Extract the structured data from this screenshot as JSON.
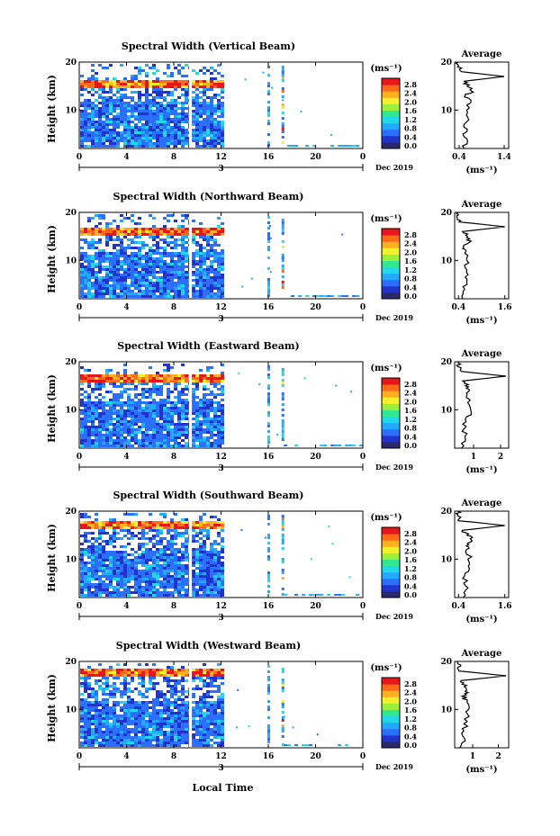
{
  "x_label": "Local Time",
  "day_label": "3",
  "date_label": "Dec 2019",
  "avg_title": "Average",
  "unit_label": "(ms⁻¹)",
  "y_label": "Height (km)",
  "colorbar_ticks": [
    "0.0",
    "0.4",
    "0.8",
    "1.2",
    "1.6",
    "2.0",
    "2.4",
    "2.8"
  ],
  "colorbar_colors": [
    "#2a2a6a",
    "#2233cc",
    "#2b6fff",
    "#22aaff",
    "#20d8e8",
    "#30e890",
    "#9cf03a",
    "#f2f02a",
    "#ffb020",
    "#ff6a1a",
    "#e8161a"
  ],
  "chart_data": [
    {
      "type": "heatmap",
      "title": "Spectral Width (Vertical Beam)",
      "xlabel": "Local Time",
      "ylabel": "Height (km)",
      "colorbar_label": "(ms⁻¹)",
      "x_ticks": [
        "0",
        "4",
        "8",
        "12",
        "16",
        "20",
        "0"
      ],
      "xlim": [
        0,
        24
      ],
      "y_ticks": [
        "20",
        "10"
      ],
      "ylim": [
        2,
        20
      ],
      "color_ticks": [
        "0.0",
        "0.4",
        "0.8",
        "1.2",
        "1.6",
        "2.0",
        "2.4",
        "2.8"
      ],
      "clim": [
        0,
        3.0
      ],
      "average_profile": {
        "xlabel": "(ms⁻¹)",
        "x_ticks": [
          "0.4",
          "1.4"
        ],
        "xlim": [
          0.3,
          1.5
        ],
        "height_km": [
          2,
          4,
          6,
          8,
          10,
          12,
          13,
          14,
          15,
          16,
          17,
          18,
          19,
          20
        ],
        "values": [
          0.5,
          0.55,
          0.52,
          0.6,
          0.58,
          0.62,
          0.55,
          0.7,
          0.6,
          0.5,
          1.4,
          0.45,
          0.4,
          0.38
        ]
      }
    },
    {
      "type": "heatmap",
      "title": "Spectral Width (Northward Beam)",
      "xlabel": "Local Time",
      "ylabel": "Height (km)",
      "colorbar_label": "(ms⁻¹)",
      "x_ticks": [
        "0",
        "4",
        "8",
        "12",
        "16",
        "20",
        "0"
      ],
      "xlim": [
        0,
        24
      ],
      "y_ticks": [
        "20",
        "10"
      ],
      "ylim": [
        2,
        20
      ],
      "color_ticks": [
        "0.0",
        "0.4",
        "0.8",
        "1.2",
        "1.6",
        "2.0",
        "2.4",
        "2.8"
      ],
      "clim": [
        0,
        3.0
      ],
      "average_profile": {
        "xlabel": "(ms⁻¹)",
        "x_ticks": [
          "0.4",
          "1.6"
        ],
        "xlim": [
          0.3,
          1.7
        ],
        "height_km": [
          2,
          4,
          6,
          8,
          10,
          12,
          13,
          14,
          15,
          16,
          17,
          18,
          19,
          20
        ],
        "values": [
          0.5,
          0.55,
          0.6,
          0.58,
          0.62,
          0.6,
          0.55,
          0.7,
          0.65,
          0.5,
          1.6,
          0.45,
          0.42,
          0.4
        ]
      }
    },
    {
      "type": "heatmap",
      "title": "Spectral Width (Eastward Beam)",
      "xlabel": "Local Time",
      "ylabel": "Height (km)",
      "colorbar_label": "(ms⁻¹)",
      "x_ticks": [
        "0",
        "4",
        "8",
        "12",
        "16",
        "20",
        "0"
      ],
      "xlim": [
        0,
        24
      ],
      "y_ticks": [
        "20",
        "10"
      ],
      "ylim": [
        2,
        20
      ],
      "color_ticks": [
        "0.0",
        "0.4",
        "0.8",
        "1.2",
        "1.6",
        "2.0",
        "2.4",
        "2.8"
      ],
      "clim": [
        0,
        3.0
      ],
      "average_profile": {
        "xlabel": "(ms⁻¹)",
        "x_ticks": [
          "1",
          "2"
        ],
        "xlim": [
          0.3,
          2.3
        ],
        "height_km": [
          2,
          4,
          6,
          8,
          10,
          12,
          13,
          14,
          15,
          16,
          17,
          18,
          19,
          20
        ],
        "values": [
          0.6,
          0.7,
          0.65,
          0.75,
          0.9,
          0.8,
          0.7,
          0.85,
          0.75,
          0.6,
          2.2,
          0.5,
          0.45,
          0.45
        ]
      }
    },
    {
      "type": "heatmap",
      "title": "Spectral Width (Southward Beam)",
      "xlabel": "Local Time",
      "ylabel": "Height (km)",
      "colorbar_label": "(ms⁻¹)",
      "x_ticks": [
        "0",
        "4",
        "8",
        "12",
        "16",
        "20",
        "0"
      ],
      "xlim": [
        0,
        24
      ],
      "y_ticks": [
        "20",
        "10"
      ],
      "ylim": [
        2,
        20
      ],
      "color_ticks": [
        "0.0",
        "0.4",
        "0.8",
        "1.2",
        "1.6",
        "2.0",
        "2.4",
        "2.8"
      ],
      "clim": [
        0,
        3.0
      ],
      "average_profile": {
        "xlabel": "(ms⁻¹)",
        "x_ticks": [
          "0.4",
          "1.6"
        ],
        "xlim": [
          0.3,
          1.7
        ],
        "height_km": [
          2,
          4,
          6,
          8,
          10,
          12,
          13,
          14,
          15,
          16,
          17,
          18,
          19,
          20
        ],
        "values": [
          0.5,
          0.6,
          0.58,
          0.65,
          0.7,
          0.62,
          0.6,
          0.75,
          0.65,
          0.5,
          1.6,
          0.45,
          0.4,
          0.38
        ]
      }
    },
    {
      "type": "heatmap",
      "title": "Spectral Width (Westward Beam)",
      "xlabel": "Local Time",
      "ylabel": "Height (km)",
      "colorbar_label": "(ms⁻¹)",
      "x_ticks": [
        "0",
        "4",
        "8",
        "12",
        "16",
        "20",
        "0"
      ],
      "xlim": [
        0,
        24
      ],
      "y_ticks": [
        "20",
        "10"
      ],
      "ylim": [
        2,
        20
      ],
      "color_ticks": [
        "0.0",
        "0.4",
        "0.8",
        "1.2",
        "1.6",
        "2.0",
        "2.4",
        "2.8"
      ],
      "clim": [
        0,
        3.0
      ],
      "average_profile": {
        "xlabel": "(ms⁻¹)",
        "x_ticks": [
          "1",
          "2"
        ],
        "xlim": [
          0.3,
          2.4
        ],
        "height_km": [
          2,
          4,
          6,
          8,
          10,
          12,
          13,
          14,
          15,
          16,
          17,
          18,
          19,
          20
        ],
        "values": [
          0.6,
          0.65,
          0.7,
          0.75,
          0.8,
          0.7,
          0.65,
          0.8,
          0.7,
          0.55,
          2.3,
          0.5,
          0.45,
          0.42
        ]
      }
    }
  ]
}
